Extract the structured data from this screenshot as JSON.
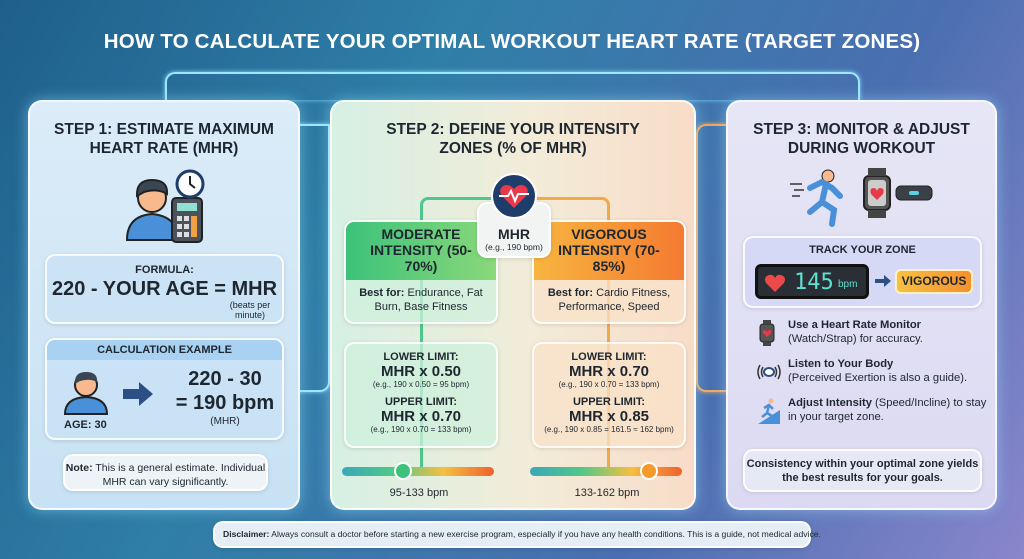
{
  "title": "HOW TO CALCULATE YOUR OPTIMAL WORKOUT HEART RATE (TARGET ZONES)",
  "step1": {
    "title": "STEP 1: ESTIMATE MAXIMUM HEART RATE (MHR)",
    "icon": "person-calculator-clock-icon",
    "formula_label": "FORMULA:",
    "formula": "220 - YOUR AGE = MHR",
    "formula_unit": "(beats per minute)",
    "example_label": "CALCULATION EXAMPLE",
    "age": "AGE: 30",
    "calc_line1": "220 - 30",
    "calc_line2": "= 190 bpm",
    "calc_unit": "(MHR)",
    "note_bold": "Note:",
    "note_text": " This is a general estimate. Individual MHR can vary significantly."
  },
  "step2": {
    "title": "STEP 2: DEFINE YOUR INTENSITY ZONES (% OF MHR)",
    "mhr_label": "MHR",
    "mhr_example": "(e.g., 190 bpm)",
    "zones": [
      {
        "title": "MODERATE INTENSITY (50-70%)",
        "best_bold": "Best for:",
        "best_text": " Endurance, Fat Burn, Base Fitness",
        "lower_label": "LOWER LIMIT:",
        "lower": "MHR x 0.50",
        "lower_ex": "(e.g., 190 x 0.50 = 95 bpm)",
        "upper_label": "UPPER LIMIT:",
        "upper": "MHR x 0.70",
        "upper_ex": "(e.g., 190 x 0.70 = 133 bpm)",
        "range": "95-133 bpm",
        "slider_position": 0.4,
        "color": "#3cc27a"
      },
      {
        "title": "VIGOROUS INTENSITY (70-85%)",
        "best_bold": "Best for:",
        "best_text": " Cardio Fitness, Performance, Speed",
        "lower_label": "LOWER LIMIT:",
        "lower": "MHR x 0.70",
        "lower_ex": "(e.g., 190 x 0.70 = 133 bpm)",
        "upper_label": "UPPER LIMIT:",
        "upper": "MHR x 0.85",
        "upper_ex": "(e.g., 190 x 0.85 = 161.5 ≈ 162 bpm)",
        "range": "133-162 bpm",
        "slider_position": 0.78,
        "color": "#f5992a"
      }
    ]
  },
  "step3": {
    "title": "STEP 3: MONITOR & ADJUST DURING WORKOUT",
    "track_label": "TRACK YOUR ZONE",
    "bpm_value": "145",
    "bpm_unit": "bpm",
    "zone_badge": "VIGOROUS",
    "tips": [
      {
        "icon": "smartwatch-icon",
        "bold": "Use a Heart Rate Monitor",
        "text": "(Watch/Strap) for accuracy."
      },
      {
        "icon": "sound-waves-icon",
        "bold": "Listen to Your Body",
        "text": "(Perceived Exertion is also a guide)."
      },
      {
        "icon": "incline-runner-icon",
        "bold": "Adjust Intensity",
        "text": " (Speed/Incline) to stay in your target zone."
      }
    ],
    "consistency": "Consistency within your optimal zone yields the best results for your goals."
  },
  "disclaimer": {
    "bold": "Disclaimer:",
    "text": " Always consult a doctor before starting a new exercise program, especially if you have any health conditions. This is a guide, not medical advice."
  }
}
